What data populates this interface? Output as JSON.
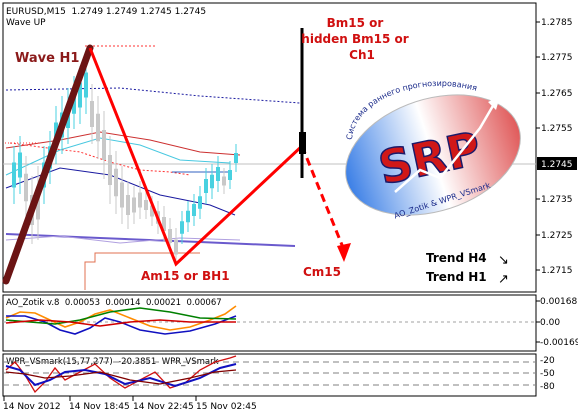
{
  "header": {
    "symbol_line": "EURUSD,M15  1.2749 1.2749 1.2745 1.2745",
    "subtitle": "Wave UP"
  },
  "price_axis": [
    "1.2785",
    "1.2775",
    "1.2765",
    "1.2755",
    "1.2745",
    "1.2735",
    "1.2725",
    "1.2715"
  ],
  "current_price": "1.2745",
  "time_axis": [
    "14 Nov 2012",
    "14 Nov 18:45",
    "14 Nov 22:45",
    "15 Nov 02:45"
  ],
  "annotations": {
    "wave_h1": "Wave H1",
    "bm15_line1": "Bm15 or",
    "bm15_line2": "hidden Bm15 or",
    "bm15_line3": "Ch1",
    "am15": "Am15 or BH1",
    "cm15": "Cm15",
    "trend_h4": "Trend H4",
    "trend_h1": "Trend H1",
    "trend_h4_arrow": "↘",
    "trend_h1_arrow": "↗"
  },
  "logo": {
    "big_text": "SRP",
    "arc_text": "Система раннего прогнозирования",
    "bottom_text": "AO_Zotik & WPR_VSmark"
  },
  "ao_panel": {
    "label": "AO_Zotik v.8  0.00053  0.00014  0.00021  0.00067",
    "axis": [
      "0.00168",
      "0.00",
      "-0.00169"
    ]
  },
  "wpr_panel": {
    "label": "WPR_VSmark(15,77,277)  -20.3851  WPR_VSmark",
    "axis": [
      "-20",
      "-50",
      "-80"
    ]
  },
  "colors": {
    "wave": "#6b1414",
    "projection": "#ff0000",
    "bull_candle": "#48d1e0",
    "bear_candle": "#c8c8c8",
    "ma_blue": "#1a1aa0",
    "ma_purple": "#6a5acd",
    "annotation": "#d01010"
  }
}
